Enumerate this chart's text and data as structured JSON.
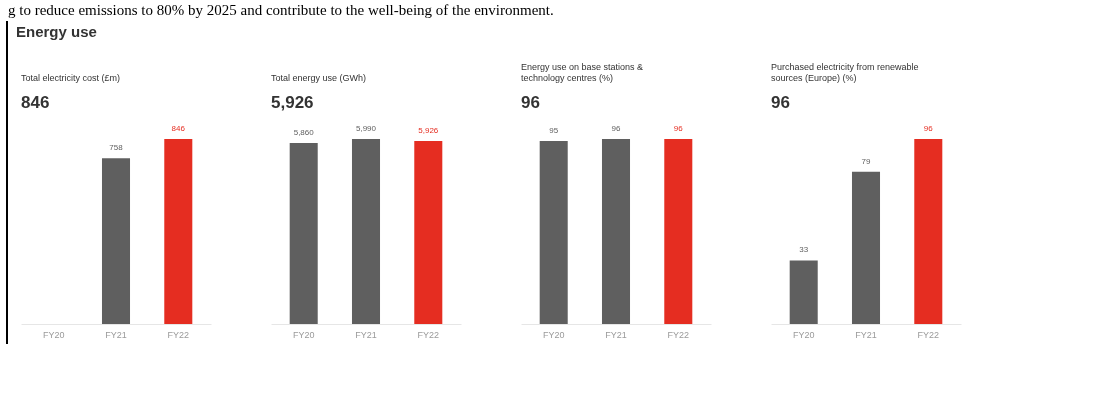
{
  "chart_data": [
    {
      "type": "bar",
      "title": "Total electricity cost (£m)",
      "subtitle": "846",
      "annotations": [
        "g to reduce emissions to 80% by 2025 and contribute to the well-being of the environment.",
        "Energy use"
      ],
      "categories": [
        "FY20",
        "FY21",
        "FY22"
      ],
      "values": [
        null,
        758,
        846
      ],
      "value_labels": [
        null,
        "758",
        "846"
      ],
      "colors": [
        "#5f5f5f",
        "#5f5f5f",
        "#e52d21"
      ]
    },
    {
      "type": "bar",
      "title": "Total energy use (GWh)",
      "subtitle": "5,926",
      "categories": [
        "FY20",
        "FY21",
        "FY22"
      ],
      "values": [
        5860,
        5990,
        5926
      ],
      "value_labels": [
        "5,860",
        "5,990",
        "5,926"
      ],
      "colors": [
        "#5f5f5f",
        "#5f5f5f",
        "#e52d21"
      ]
    },
    {
      "type": "bar",
      "title": "Energy use on base stations & technology centres (%)",
      "subtitle": "96",
      "categories": [
        "FY20",
        "FY21",
        "FY22"
      ],
      "values": [
        95,
        96,
        96
      ],
      "value_labels": [
        "95",
        "96",
        "96"
      ],
      "colors": [
        "#5f5f5f",
        "#5f5f5f",
        "#e52d21"
      ]
    },
    {
      "type": "bar",
      "title": "Purchased electricity from renewable sources (Europe) (%)",
      "subtitle": "96",
      "categories": [
        "FY20",
        "FY21",
        "FY22"
      ],
      "values": [
        33,
        79,
        96
      ],
      "value_labels": [
        "33",
        "79",
        "96"
      ],
      "colors": [
        "#5f5f5f",
        "#5f5f5f",
        "#e52d21"
      ]
    }
  ]
}
